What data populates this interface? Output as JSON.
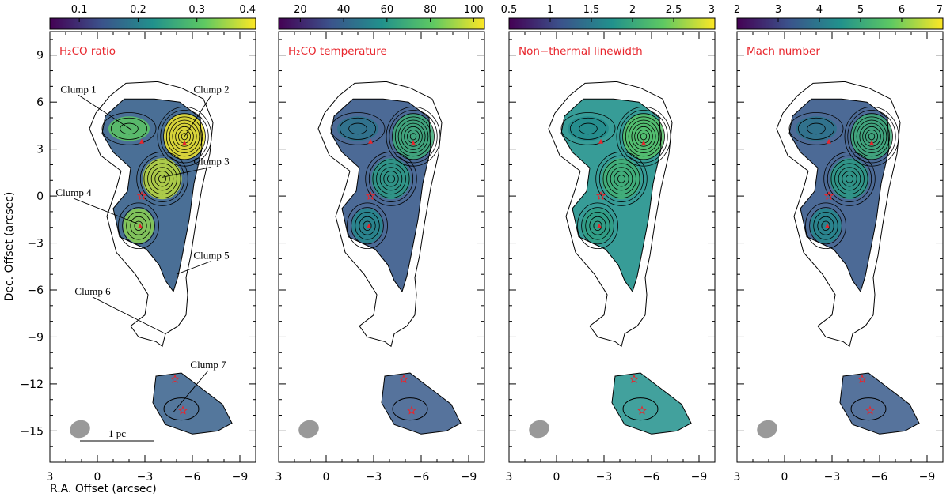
{
  "chart_data": {
    "type": "heatmap",
    "xlabel": "R.A. Offset (arcsec)",
    "ylabel": "Dec. Offset (arcsec)",
    "xlim": [
      3,
      -10
    ],
    "ylim": [
      -17,
      10.5
    ],
    "xticks": [
      3,
      0,
      -3,
      -6,
      -9
    ],
    "yticks": [
      9,
      6,
      3,
      0,
      -3,
      -6,
      -9,
      -12,
      -15
    ],
    "scale_bar_label": "1 pc",
    "grid": false,
    "colormap": [
      "#440154",
      "#3b528b",
      "#21918c",
      "#5ec962",
      "#fde725"
    ],
    "panels": [
      {
        "title": "H₂CO ratio",
        "colorbar_min": 0.05,
        "colorbar_max": 0.4,
        "colorbar_ticks": [
          0.1,
          0.2,
          0.3,
          0.4
        ],
        "colorbar_labels": [
          "0.1",
          "0.2",
          "0.3",
          "0.4"
        ]
      },
      {
        "title": "H₂CO temperature",
        "colorbar_min": 10,
        "colorbar_max": 105,
        "colorbar_ticks": [
          20,
          40,
          60,
          80,
          100
        ],
        "colorbar_labels": [
          "20",
          "40",
          "60",
          "80",
          "100"
        ]
      },
      {
        "title": "Non−thermal linewidth",
        "colorbar_min": 0.5,
        "colorbar_max": 3,
        "colorbar_ticks": [
          0.5,
          1,
          1.5,
          2,
          2.5,
          3
        ],
        "colorbar_labels": [
          "0.5",
          "1",
          "1.5",
          "2",
          "2.5",
          "3"
        ]
      },
      {
        "title": "Mach number",
        "colorbar_min": 2,
        "colorbar_max": 7,
        "colorbar_ticks": [
          2,
          3,
          4,
          5,
          6,
          7
        ],
        "colorbar_labels": [
          "2",
          "3",
          "4",
          "5",
          "6",
          "7"
        ]
      }
    ],
    "clumps": [
      {
        "name": "Clump 1",
        "x": -2.2,
        "y": 4.2,
        "label_x": 1.2,
        "label_y": 6.6
      },
      {
        "name": "Clump 2",
        "x": -5.5,
        "y": 3.8,
        "label_x": -7.2,
        "label_y": 6.6
      },
      {
        "name": "Clump 3",
        "x": -4.1,
        "y": 1.2,
        "label_x": -7.2,
        "label_y": 2.0
      },
      {
        "name": "Clump 4",
        "x": -2.6,
        "y": -1.8,
        "label_x": 1.5,
        "label_y": 0.0
      },
      {
        "name": "Clump 5",
        "x": -5.0,
        "y": -5.0,
        "label_x": -7.2,
        "label_y": -4.0
      },
      {
        "name": "Clump 6",
        "x": -4.3,
        "y": -8.8,
        "label_x": 0.3,
        "label_y": -6.3
      },
      {
        "name": "Clump 7",
        "x": -4.8,
        "y": -13.8,
        "label_x": -7.0,
        "label_y": -11.0
      }
    ],
    "triangle_markers": [
      {
        "x": -2.8,
        "y": 3.5
      },
      {
        "x": -5.5,
        "y": 3.4
      },
      {
        "x": -2.7,
        "y": -1.9
      }
    ],
    "star_markers": [
      {
        "x": -2.8,
        "y": 0.0
      },
      {
        "x": -4.9,
        "y": -11.7
      },
      {
        "x": -5.4,
        "y": -13.7
      }
    ],
    "peak_contours": [
      {
        "x": -5.5,
        "y": 3.8,
        "n": 9,
        "base_rx": 2.0,
        "base_ry": 2.2
      },
      {
        "x": -4.1,
        "y": 1.1,
        "n": 7,
        "base_rx": 1.9,
        "base_ry": 2.0
      },
      {
        "x": -2.6,
        "y": -1.9,
        "n": 5,
        "base_rx": 1.5,
        "base_ry": 1.7
      },
      {
        "x": -2.0,
        "y": 4.3,
        "n": 3,
        "base_rx": 2.0,
        "base_ry": 1.2
      }
    ]
  }
}
